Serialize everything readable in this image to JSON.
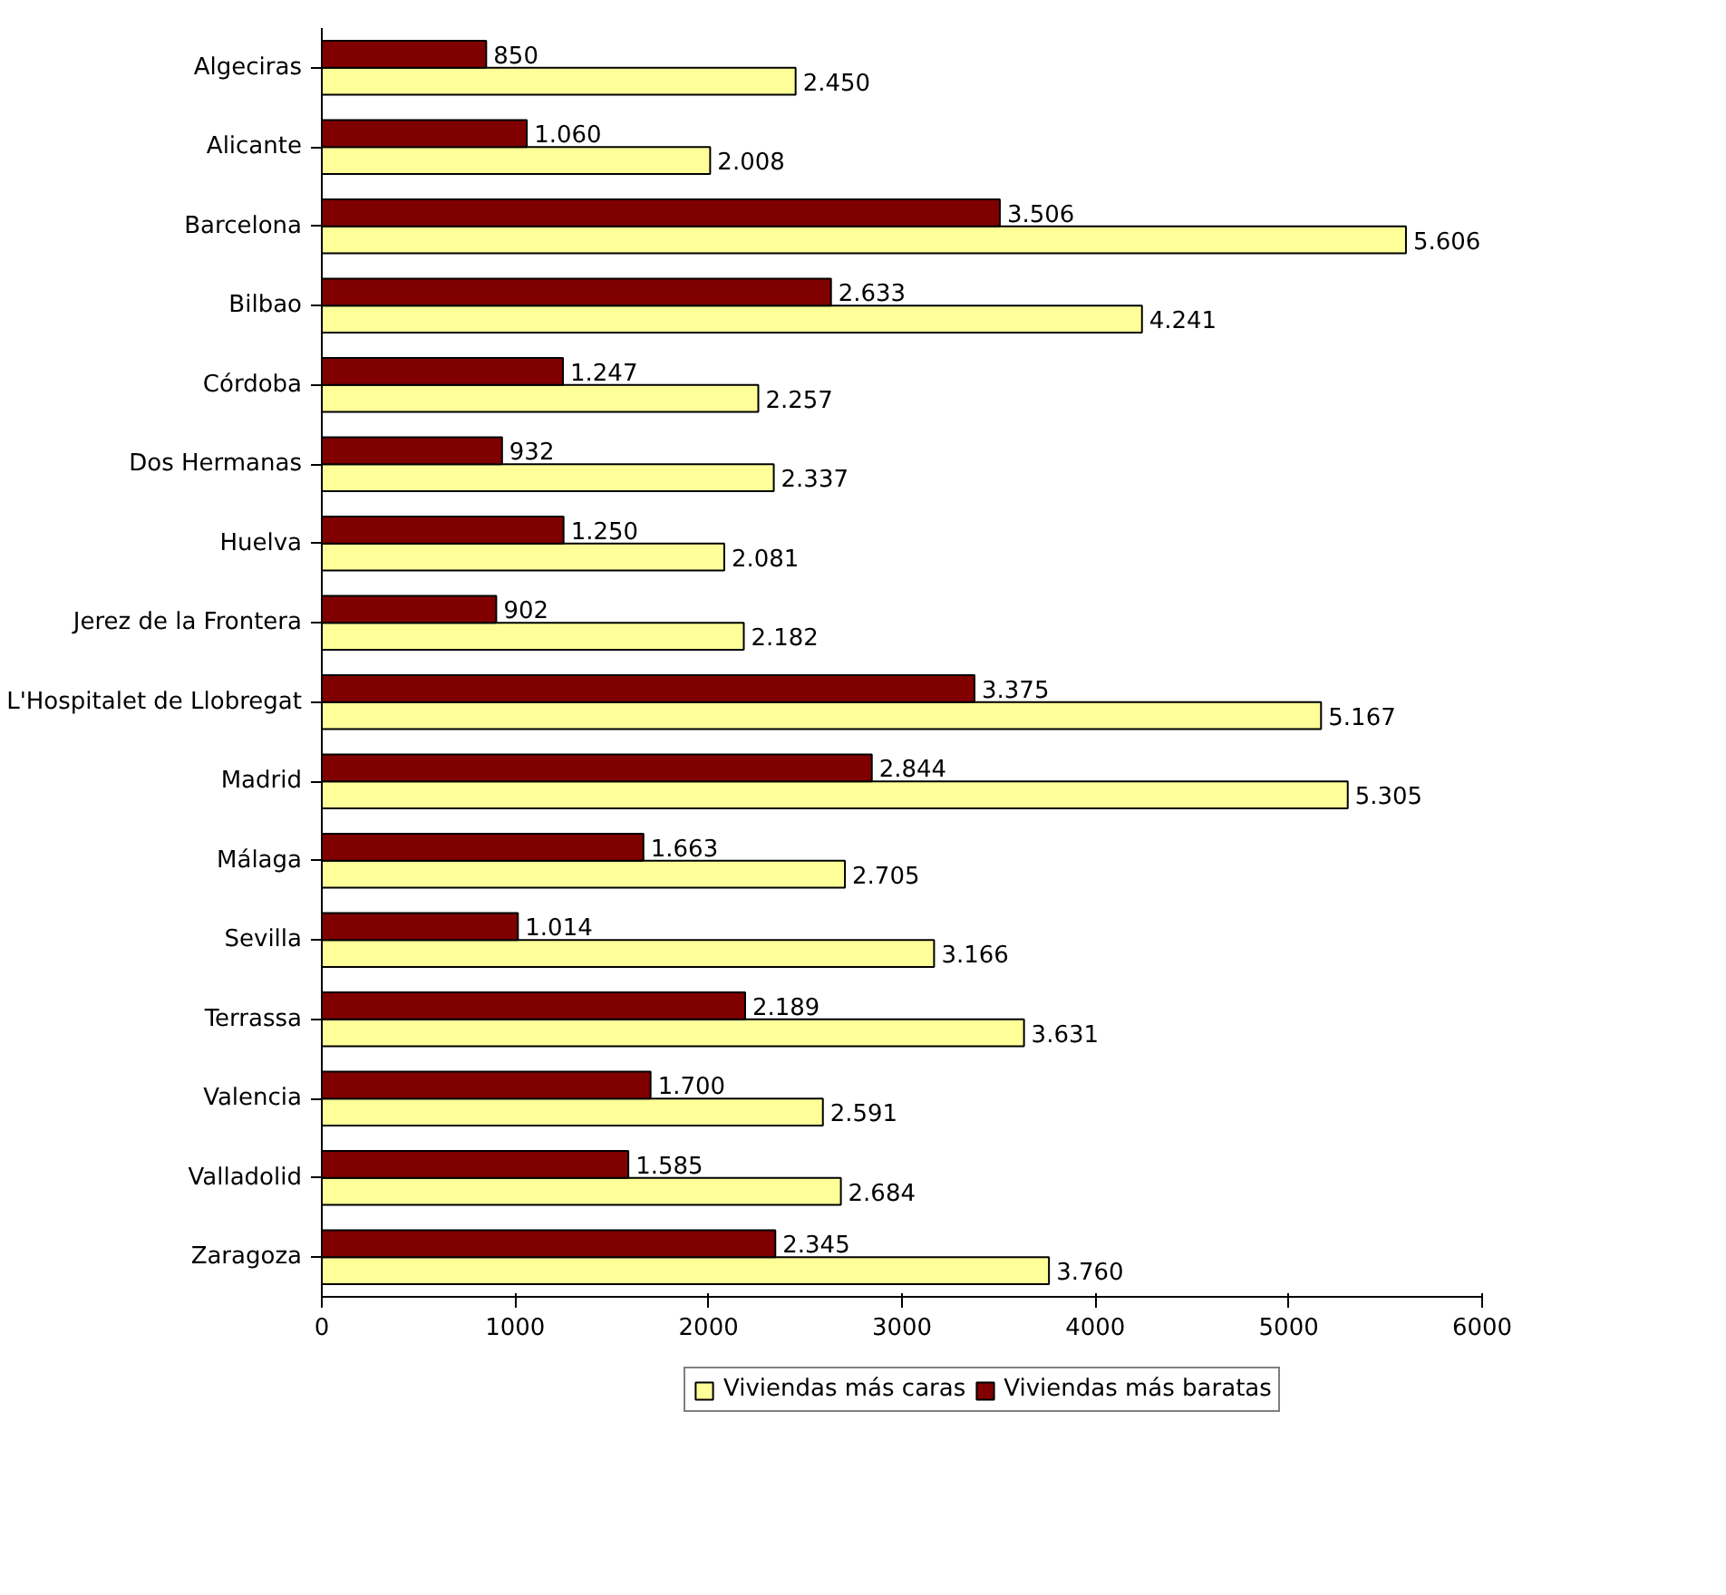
{
  "chart_data": {
    "type": "bar",
    "orientation": "horizontal",
    "categories": [
      "Algeciras",
      "Alicante",
      "Barcelona",
      "Bilbao",
      "Córdoba",
      "Dos Hermanas",
      "Huelva",
      "Jerez de la Frontera",
      "L'Hospitalet de Llobregat",
      "Madrid",
      "Málaga",
      "Sevilla",
      "Terrassa",
      "Valencia",
      "Valladolid",
      "Zaragoza"
    ],
    "series": [
      {
        "name": "Viviendas más caras",
        "color": "#ffff99",
        "values": [
          2450,
          2008,
          5606,
          4241,
          2257,
          2337,
          2081,
          2182,
          5167,
          5305,
          2705,
          3166,
          3631,
          2591,
          2684,
          3760
        ],
        "value_labels": [
          "2.450",
          "2.008",
          "5.606",
          "4.241",
          "2.257",
          "2.337",
          "2.081",
          "2.182",
          "5.167",
          "5.305",
          "2.705",
          "3.166",
          "3.631",
          "2.591",
          "2.684",
          "3.760"
        ]
      },
      {
        "name": "Viviendas más baratas",
        "color": "#800000",
        "values": [
          850,
          1060,
          3506,
          2633,
          1247,
          932,
          1250,
          902,
          3375,
          2844,
          1663,
          1014,
          2189,
          1700,
          1585,
          2345
        ],
        "value_labels": [
          "850",
          "1.060",
          "3.506",
          "2.633",
          "1.247",
          "932",
          "1.250",
          "902",
          "3.375",
          "2.844",
          "1.663",
          "1.014",
          "2.189",
          "1.700",
          "1.585",
          "2.345"
        ]
      }
    ],
    "xlim": [
      0,
      6000
    ],
    "xticks": [
      0,
      1000,
      2000,
      3000,
      4000,
      5000,
      6000
    ],
    "grid": false,
    "legend": "bottom"
  }
}
